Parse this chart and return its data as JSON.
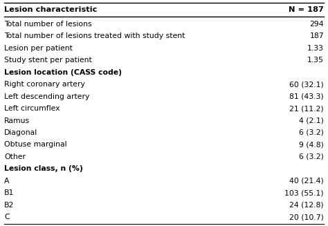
{
  "title_left": "Lesion characteristic",
  "title_right": "N = 187",
  "rows": [
    {
      "label": "Total number of lesions",
      "value": "294",
      "bold_label": false
    },
    {
      "label": "Total number of lesions treated with study stent",
      "value": "187",
      "bold_label": false
    },
    {
      "label": "Lesion per patient",
      "value": "1.33",
      "bold_label": false
    },
    {
      "label": "Study stent per patient",
      "value": "1.35",
      "bold_label": false
    },
    {
      "label": "Lesion location (CASS code)",
      "value": "",
      "bold_label": true
    },
    {
      "label": "Right coronary artery",
      "value": "60 (32.1)",
      "bold_label": false
    },
    {
      "label": "Left descending artery",
      "value": "81 (43.3)",
      "bold_label": false
    },
    {
      "label": "Left circumflex",
      "value": "21 (11.2)",
      "bold_label": false
    },
    {
      "label": "Ramus",
      "value": "4 (2.1)",
      "bold_label": false
    },
    {
      "label": "Diagonal",
      "value": "6 (3.2)",
      "bold_label": false
    },
    {
      "label": "Obtuse marginal",
      "value": "9 (4.8)",
      "bold_label": false
    },
    {
      "label": "Other",
      "value": "6 (3.2)",
      "bold_label": false
    },
    {
      "label": "Lesion class, n (%)",
      "value": "",
      "bold_label": true
    },
    {
      "label": "A",
      "value": "40 (21.4)",
      "bold_label": false
    },
    {
      "label": "B1",
      "value": "103 (55.1)",
      "bold_label": false
    },
    {
      "label": "B2",
      "value": "24 (12.8)",
      "bold_label": false
    },
    {
      "label": "C",
      "value": "20 (10.7)",
      "bold_label": false
    }
  ],
  "bg_color": "#ffffff",
  "text_color": "#000000",
  "line_color": "#000000",
  "font_size": 7.8,
  "header_font_size": 8.2
}
